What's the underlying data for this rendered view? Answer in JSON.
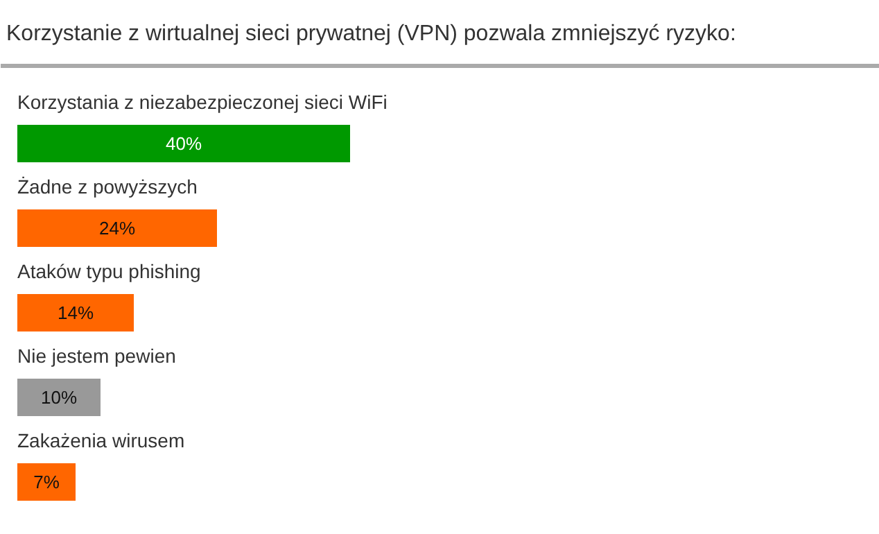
{
  "chart_data": {
    "type": "bar",
    "orientation": "horizontal",
    "title": "Korzystanie z wirtualnej sieci prywatnej (VPN) pozwala zmniejszyć ryzyko:",
    "categories": [
      "Korzystania z niezabezpieczonej sieci WiFi",
      "Żadne z powyższych",
      "Ataków typu phishing",
      "Nie jestem pewien",
      "Zakażenia wirusem"
    ],
    "values": [
      40,
      24,
      14,
      10,
      7
    ],
    "colors": [
      "#009900",
      "#ff6600",
      "#ff6600",
      "#999999",
      "#ff6600"
    ],
    "value_labels": [
      "40%",
      "24%",
      "14%",
      "10%",
      "7%"
    ]
  }
}
